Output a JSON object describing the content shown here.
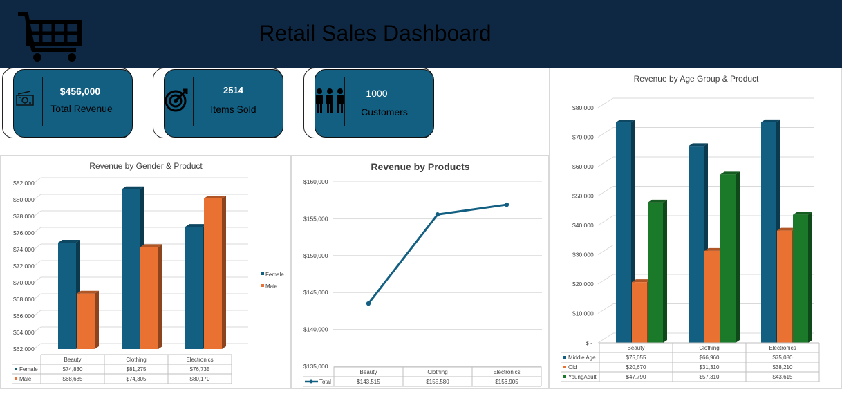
{
  "header": {
    "title": "Retail Sales Dashboard",
    "logo_icon": "shopping-cart-icon"
  },
  "kpis": [
    {
      "value": "$456,000",
      "label": "Total Revenue",
      "icon": "money-icon"
    },
    {
      "value": "2514",
      "label": "Items Sold",
      "icon": "target-icon"
    },
    {
      "value": "1000",
      "label": "Customers",
      "icon": "people-icon"
    }
  ],
  "colors": {
    "header": "#0e2843",
    "card": "#125f82",
    "blue": "#125f82",
    "orange": "#e97132",
    "green": "#1a7a29"
  },
  "chart_data": [
    {
      "type": "bar",
      "title": "Revenue by Gender & Product",
      "categories": [
        "Beauty",
        "Clothing",
        "Electronics"
      ],
      "series": [
        {
          "name": "Female",
          "values": [
            74830,
            81275,
            76735
          ],
          "labels": [
            "$74,830",
            "$81,275",
            "$76,735"
          ]
        },
        {
          "name": "Male",
          "values": [
            68685,
            74305,
            80170
          ],
          "labels": [
            "$68,685",
            "$74,305",
            "$80,170"
          ]
        }
      ],
      "ylim": [
        62000,
        82000
      ],
      "yticks": [
        "$62,000",
        "$64,000",
        "$66,000",
        "$68,000",
        "$70,000",
        "$72,000",
        "$74,000",
        "$76,000",
        "$78,000",
        "$80,000",
        "$82,000"
      ],
      "legend": "right"
    },
    {
      "type": "line",
      "title": "Revenue by Products",
      "categories": [
        "Beauty",
        "Clothing",
        "Electronics"
      ],
      "series": [
        {
          "name": "Total",
          "values": [
            143515,
            155580,
            156905
          ],
          "labels": [
            "$143,515",
            "$155,580",
            "$156,905"
          ]
        }
      ],
      "ylim": [
        135000,
        160000
      ],
      "yticks": [
        "$135,000",
        "$140,000",
        "$145,000",
        "$150,000",
        "$155,000",
        "$160,000"
      ]
    },
    {
      "type": "bar",
      "title": "Revenue by Age Group & Product",
      "categories": [
        "Beauty",
        "Clothing",
        "Electronics"
      ],
      "series": [
        {
          "name": "Middle Age",
          "values": [
            75055,
            66960,
            75080
          ],
          "labels": [
            "$75,055",
            "$66,960",
            "$75,080"
          ]
        },
        {
          "name": "Old",
          "values": [
            20670,
            31310,
            38210
          ],
          "labels": [
            "$20,670",
            "$31,310",
            "$38,210"
          ]
        },
        {
          "name": "YoungAdult",
          "values": [
            47790,
            57310,
            43615
          ],
          "labels": [
            "$47,790",
            "$57,310",
            "$43,615"
          ]
        }
      ],
      "ylim": [
        0,
        80000
      ],
      "yticks": [
        "$ -",
        "$10,000",
        "$20,000",
        "$30,000",
        "$40,000",
        "$50,000",
        "$60,000",
        "$70,000",
        "$80,000"
      ]
    }
  ]
}
